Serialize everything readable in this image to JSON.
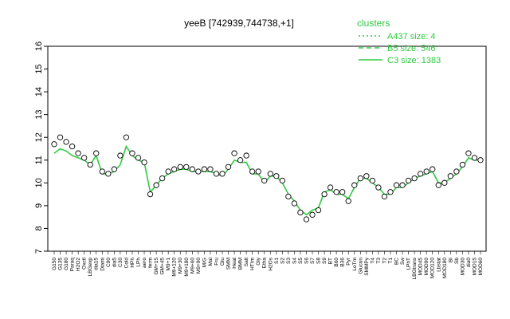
{
  "chart_data": {
    "type": "line",
    "title": "yeeB [742939,744738,+1]",
    "xlabel": "",
    "ylabel": "",
    "ylim": [
      7,
      16
    ],
    "yticks": [
      7,
      8,
      9,
      10,
      11,
      12,
      13,
      14,
      15,
      16
    ],
    "grid": false,
    "legend": {
      "placement": "top-right",
      "title": "clusters",
      "entries": [
        {
          "label": "A437 size: 4",
          "style": "dotted"
        },
        {
          "label": "B5 size: 546",
          "style": "dashed"
        },
        {
          "label": "C3 size: 1383",
          "style": "solid"
        }
      ]
    },
    "colors": {
      "line": "#2ecc40",
      "points": "#000000",
      "legend": "#2ecc40"
    },
    "xtick_labels": [
      "G150",
      "G135",
      "G180",
      "Paraq",
      "H2O2",
      "Oxctl",
      "LBGexp",
      "dia15",
      "Diami",
      "C90",
      "dia5",
      "C30",
      "Cold",
      "HPh",
      "LPh",
      "aero",
      "ferm",
      "GM+15",
      "GM+45",
      "M9+1",
      "M9+120",
      "M9+30",
      "M9+180",
      "M9+60",
      "M9+90",
      "M/G",
      "Mal",
      "Fru",
      "Glu",
      "SMM",
      "Heat",
      "BMM",
      "Salt",
      "HTIm",
      "Gly",
      "Etha",
      "H2Os",
      "S1",
      "S2",
      "S3",
      "S4",
      "S5",
      "S6",
      "S7",
      "S8",
      "S9",
      "BT",
      "B60",
      "B36",
      "Pyr",
      "LoTm",
      "Glucon",
      "SMMPy",
      "T4",
      "T3",
      "T2",
      "T1",
      "BC",
      "Sw",
      "LPhT",
      "LBGtrans",
      "MOD45",
      "MOD90",
      "MOD120",
      "Lbstat",
      "MOD180",
      "BI",
      "Sb",
      "MOD30",
      "dia0",
      "MOD15",
      "MOD60"
    ],
    "x": [
      0,
      1,
      2,
      3,
      4,
      5,
      6,
      7,
      8,
      9,
      10,
      11,
      12,
      13,
      14,
      15,
      16,
      17,
      18,
      19,
      20,
      21,
      22,
      23,
      24,
      25,
      26,
      27,
      28,
      29,
      30,
      31,
      32,
      33,
      34,
      35,
      36,
      37,
      38,
      39,
      40,
      41,
      42,
      43,
      44,
      45,
      46,
      47,
      48,
      49,
      50,
      51,
      52,
      53,
      54,
      55,
      56,
      57,
      58,
      59,
      60,
      61,
      62,
      63,
      64,
      65,
      66,
      67,
      68,
      69,
      70,
      71
    ],
    "series": [
      {
        "line": [
          11.3,
          11.5,
          11.4,
          11.2,
          11.1,
          11.0,
          10.8,
          11.2,
          10.4,
          10.4,
          10.5,
          10.8,
          11.6,
          11.2,
          11.0,
          10.9,
          9.6,
          9.9,
          10.2,
          10.4,
          10.5,
          10.6,
          10.6,
          10.5,
          10.5,
          10.5,
          10.5,
          10.4,
          10.3,
          10.6,
          11.0,
          10.9,
          10.9,
          10.4,
          10.4,
          10.0,
          10.3,
          10.3,
          10.0,
          9.5,
          9.2,
          8.8,
          8.6,
          8.8,
          8.9,
          9.6,
          9.7,
          9.5,
          9.5,
          9.3,
          9.8,
          10.2,
          10.2,
          10.0,
          9.8,
          9.5,
          9.5,
          9.8,
          9.8,
          10.0,
          10.2,
          10.3,
          10.4,
          10.5,
          10.0,
          10.0,
          10.2,
          10.4,
          10.7,
          11.1,
          11.0,
          11.0
        ],
        "points": [
          11.7,
          12.0,
          11.8,
          11.6,
          11.3,
          11.1,
          10.8,
          11.3,
          10.5,
          10.4,
          10.6,
          11.2,
          12.0,
          11.3,
          11.1,
          10.9,
          9.5,
          9.9,
          10.2,
          10.5,
          10.6,
          10.7,
          10.7,
          10.6,
          10.5,
          10.6,
          10.6,
          10.4,
          10.4,
          10.7,
          11.3,
          11.0,
          11.2,
          10.5,
          10.5,
          10.1,
          10.4,
          10.3,
          10.1,
          9.4,
          9.1,
          8.7,
          8.4,
          8.6,
          8.8,
          9.5,
          9.8,
          9.6,
          9.6,
          9.2,
          9.9,
          10.2,
          10.3,
          10.1,
          9.8,
          9.4,
          9.6,
          9.9,
          9.9,
          10.1,
          10.2,
          10.4,
          10.5,
          10.6,
          9.9,
          10.0,
          10.3,
          10.5,
          10.8,
          11.3,
          11.1,
          11.0
        ]
      }
    ]
  }
}
